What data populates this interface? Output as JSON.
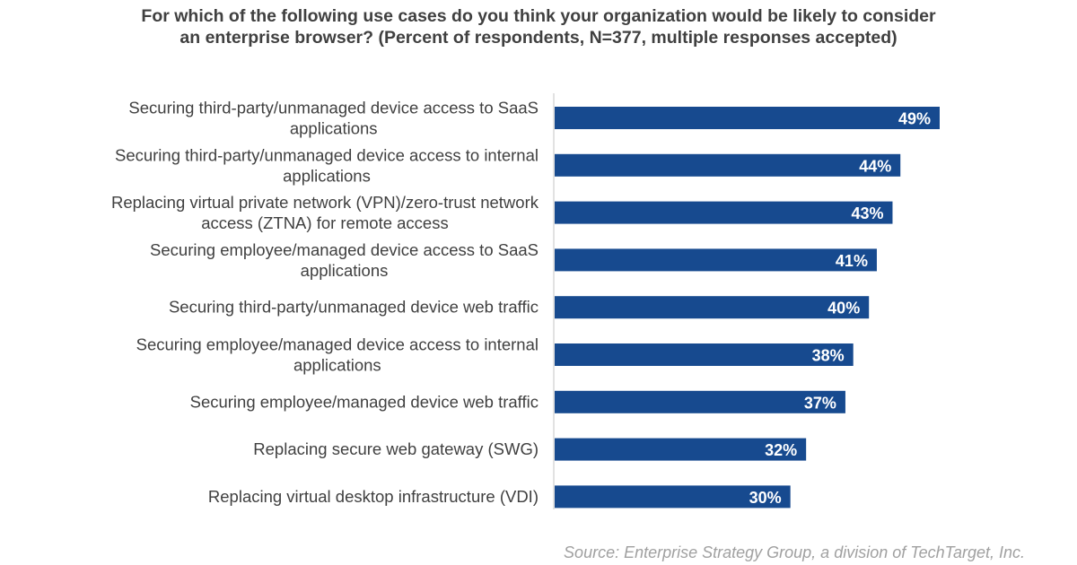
{
  "chart_data": {
    "type": "bar",
    "orientation": "horizontal",
    "title": "For which of the following use cases do you think your organization would be likely to consider an enterprise browser? (Percent of respondents, N=377, multiple responses accepted)",
    "categories": [
      [
        "Securing third-party/unmanaged device access to SaaS",
        "applications"
      ],
      [
        "Securing third-party/unmanaged device access to internal",
        "applications"
      ],
      [
        "Replacing virtual private network (VPN)/zero-trust network",
        "access (ZTNA) for remote access"
      ],
      [
        "Securing employee/managed device access to SaaS",
        "applications"
      ],
      [
        "Securing third-party/unmanaged device web traffic"
      ],
      [
        "Securing employee/managed device access to internal",
        "applications"
      ],
      [
        "Securing employee/managed device web traffic"
      ],
      [
        "Replacing secure web gateway (SWG)"
      ],
      [
        "Replacing virtual desktop infrastructure (VDI)"
      ]
    ],
    "values": [
      49,
      44,
      43,
      41,
      40,
      38,
      37,
      32,
      30
    ],
    "data_labels": [
      "49%",
      "44%",
      "43%",
      "41%",
      "40%",
      "38%",
      "37%",
      "32%",
      "30%"
    ],
    "xlim": [
      0,
      49
    ],
    "grid": false,
    "legend": "none",
    "colors": {
      "bar": "#174a8f",
      "bar_label": "#ffffff",
      "text": "#404040",
      "axis": "#d9d9d9",
      "source": "#a0a0a0"
    }
  },
  "source": "Source: Enterprise Strategy Group, a division of TechTarget, Inc."
}
